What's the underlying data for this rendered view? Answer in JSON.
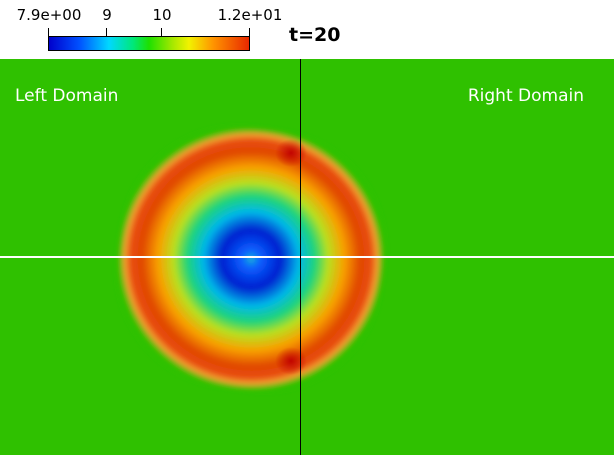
{
  "colorbar": {
    "ticks": [
      "7.9e+00",
      "9",
      "10",
      "1.2e+01"
    ],
    "colormap": [
      "#0000cc",
      "#0050ff",
      "#00d8ff",
      "#00e87a",
      "#1ee000",
      "#a8e800",
      "#f2f200",
      "#ff9500",
      "#e82800"
    ]
  },
  "time_label": "t=20",
  "viewport": {
    "left_label": "Left Domain",
    "right_label": "Right Domain",
    "background_color": "#2fc100",
    "interface_line_color": "#000000",
    "centerline_color": "#ffffff"
  }
}
